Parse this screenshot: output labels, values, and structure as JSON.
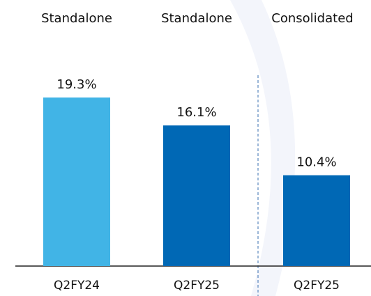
{
  "chart_data": {
    "type": "bar",
    "column_headers": [
      "Standalone",
      "Standalone",
      "Consolidated"
    ],
    "categories": [
      "Q2FY24",
      "Q2FY25",
      "Q2FY25"
    ],
    "values": [
      19.3,
      16.1,
      10.4
    ],
    "value_labels": [
      "19.3%",
      "16.1%",
      "10.4%"
    ],
    "colors": [
      "#41b4e6",
      "#0068b5",
      "#0068b5"
    ]
  }
}
